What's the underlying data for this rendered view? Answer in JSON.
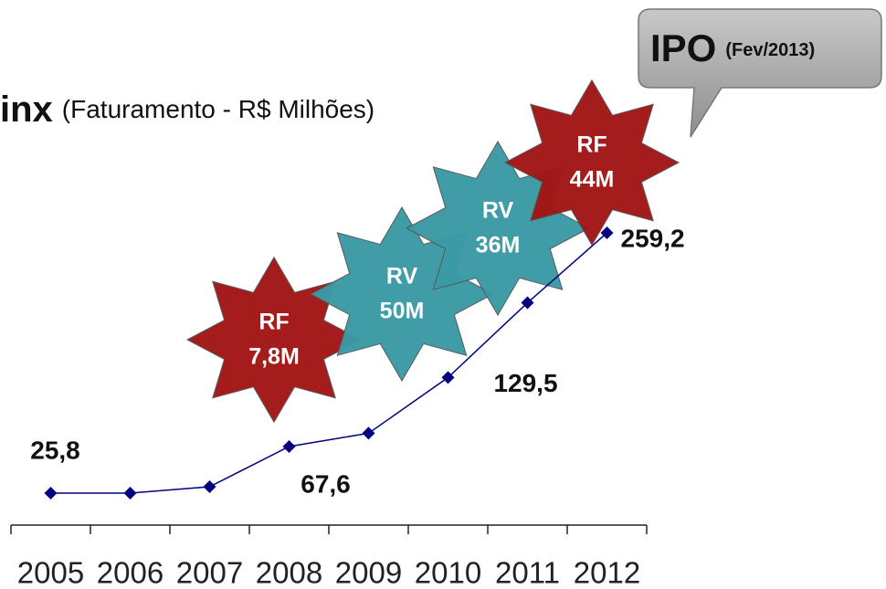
{
  "chart_data": {
    "type": "line",
    "title": "inx",
    "subtitle": "(Faturamento - R$ Milhões)",
    "categories": [
      "2005",
      "2006",
      "2007",
      "2008",
      "2009",
      "2010",
      "2011",
      "2012"
    ],
    "series": [
      {
        "color": "#000080",
        "values": [
          25.8,
          25.8,
          31.5,
          67.6,
          79.5,
          129.5,
          196.5,
          259.2
        ],
        "value_labels": [
          "25,8",
          null,
          null,
          "67,6",
          null,
          "129,5",
          null,
          "259,2"
        ]
      }
    ],
    "annotations": [
      {
        "lines": [
          "RF",
          "7,8M"
        ],
        "color": "#a31515"
      },
      {
        "lines": [
          "RV",
          "50M"
        ],
        "color": "#3a9aa6"
      },
      {
        "lines": [
          "RV",
          "36M"
        ],
        "color": "#3a9aa6"
      },
      {
        "lines": [
          "RF",
          "44M"
        ],
        "color": "#a31515"
      }
    ],
    "callout": {
      "text": "IPO",
      "note": "(Fev/2013)"
    }
  }
}
